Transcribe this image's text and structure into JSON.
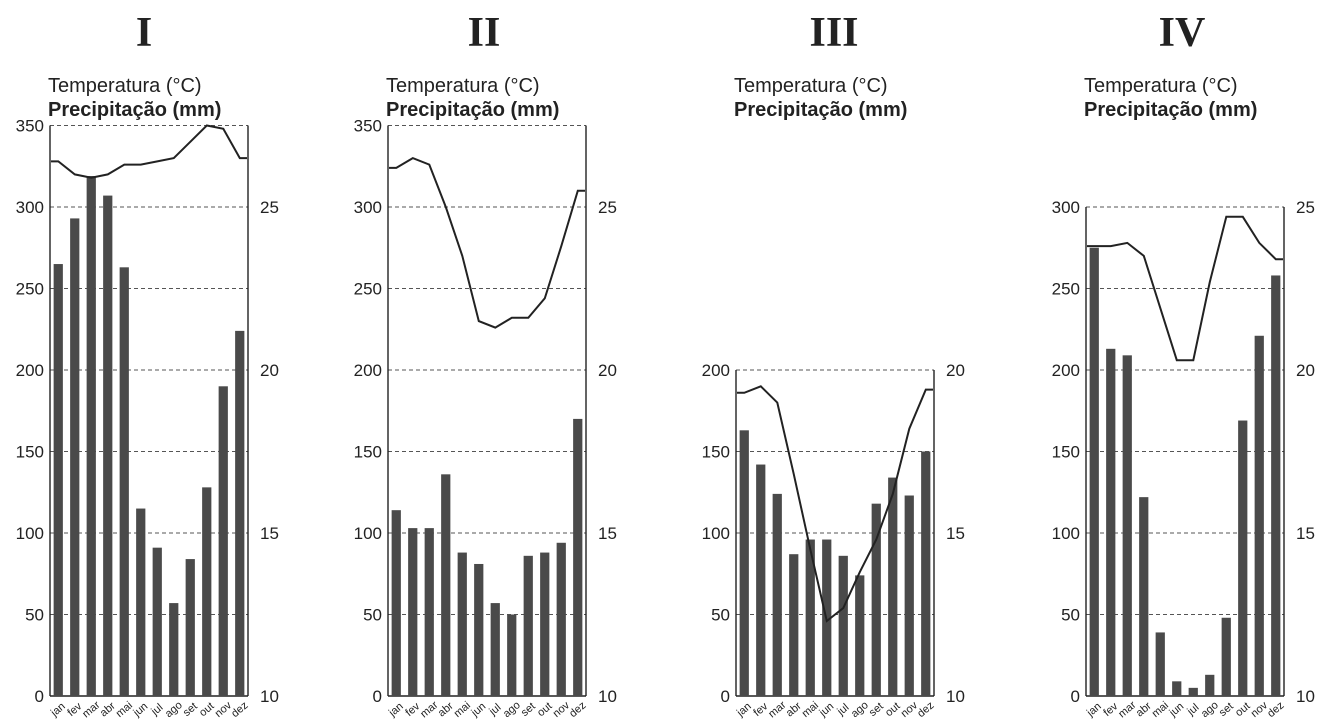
{
  "charts_common": {
    "temp_label": "Temperatura (°C)",
    "prec_label": "Precipitação (mm)",
    "months": [
      "jan",
      "fev",
      "mar",
      "abr",
      "mai",
      "jun",
      "jul",
      "ago",
      "set",
      "out",
      "nov",
      "dez"
    ]
  },
  "chart_data": [
    {
      "type": "bar+line",
      "title": "I",
      "ylabel": "Precipitação (mm)",
      "y2label": "Temperatura (°C)",
      "ylim": [
        0,
        350
      ],
      "y_ticks": [
        0,
        50,
        100,
        150,
        200,
        250,
        300,
        350
      ],
      "y2lim": [
        10,
        27.5
      ],
      "y2_ticks": [
        10,
        15,
        20,
        25
      ],
      "categories": [
        "jan",
        "fev",
        "mar",
        "abr",
        "mai",
        "jun",
        "jul",
        "ago",
        "set",
        "out",
        "nov",
        "dez"
      ],
      "series": [
        {
          "values": [
            265,
            293,
            319,
            307,
            263,
            115,
            91,
            57,
            84,
            128,
            190,
            224
          ]
        },
        {
          "values": [
            26.4,
            26.0,
            25.9,
            26.0,
            26.3,
            26.3,
            26.4,
            26.5,
            27.0,
            27.5,
            27.4,
            26.5
          ]
        }
      ],
      "grid": true
    },
    {
      "type": "bar+line",
      "title": "II",
      "ylabel": "Precipitação (mm)",
      "y2label": "Temperatura (°C)",
      "ylim": [
        0,
        350
      ],
      "y_ticks": [
        0,
        50,
        100,
        150,
        200,
        250,
        300,
        350
      ],
      "y2lim": [
        10,
        27.5
      ],
      "y2_ticks": [
        10,
        15,
        20,
        25
      ],
      "categories": [
        "jan",
        "fev",
        "mar",
        "abr",
        "mai",
        "jun",
        "jul",
        "ago",
        "set",
        "out",
        "nov",
        "dez"
      ],
      "series": [
        {
          "values": [
            114,
            103,
            103,
            136,
            88,
            81,
            57,
            50,
            86,
            88,
            94,
            170
          ]
        },
        {
          "values": [
            26.2,
            26.5,
            26.3,
            25.0,
            23.5,
            21.5,
            21.3,
            21.6,
            21.6,
            22.2,
            23.8,
            25.5
          ]
        }
      ],
      "grid": true
    },
    {
      "type": "bar+line",
      "title": "III",
      "ylabel": "Precipitação (mm)",
      "y2label": "Temperatura (°C)",
      "ylim": [
        0,
        200
      ],
      "y_ticks": [
        0,
        50,
        100,
        150,
        200
      ],
      "y2lim": [
        10,
        20
      ],
      "y2_ticks": [
        10,
        15,
        20
      ],
      "categories": [
        "jan",
        "fev",
        "mar",
        "abr",
        "mai",
        "jun",
        "jul",
        "ago",
        "set",
        "out",
        "nov",
        "dez"
      ],
      "series": [
        {
          "values": [
            163,
            142,
            124,
            87,
            96,
            96,
            86,
            74,
            118,
            134,
            123,
            150
          ]
        },
        {
          "values": [
            19.3,
            19.5,
            19.0,
            16.8,
            14.5,
            12.3,
            12.7,
            13.8,
            14.8,
            16.2,
            18.2,
            19.4
          ]
        }
      ],
      "grid": true
    },
    {
      "type": "bar+line",
      "title": "IV",
      "ylabel": "Precipitação (mm)",
      "y2label": "Temperatura (°C)",
      "ylim": [
        0,
        300
      ],
      "y_ticks": [
        0,
        50,
        100,
        150,
        200,
        250,
        300
      ],
      "y2lim": [
        10,
        25
      ],
      "y2_ticks": [
        10,
        15,
        20,
        25
      ],
      "categories": [
        "jan",
        "fev",
        "mar",
        "abr",
        "mai",
        "jun",
        "jul",
        "ago",
        "set",
        "out",
        "nov",
        "dez"
      ],
      "series": [
        {
          "values": [
            275,
            213,
            209,
            122,
            39,
            9,
            5,
            13,
            48,
            169,
            221,
            258
          ]
        },
        {
          "values": [
            23.8,
            23.8,
            23.9,
            23.5,
            21.9,
            20.3,
            20.3,
            22.7,
            24.7,
            24.7,
            23.9,
            23.4
          ]
        }
      ],
      "grid": true
    }
  ]
}
